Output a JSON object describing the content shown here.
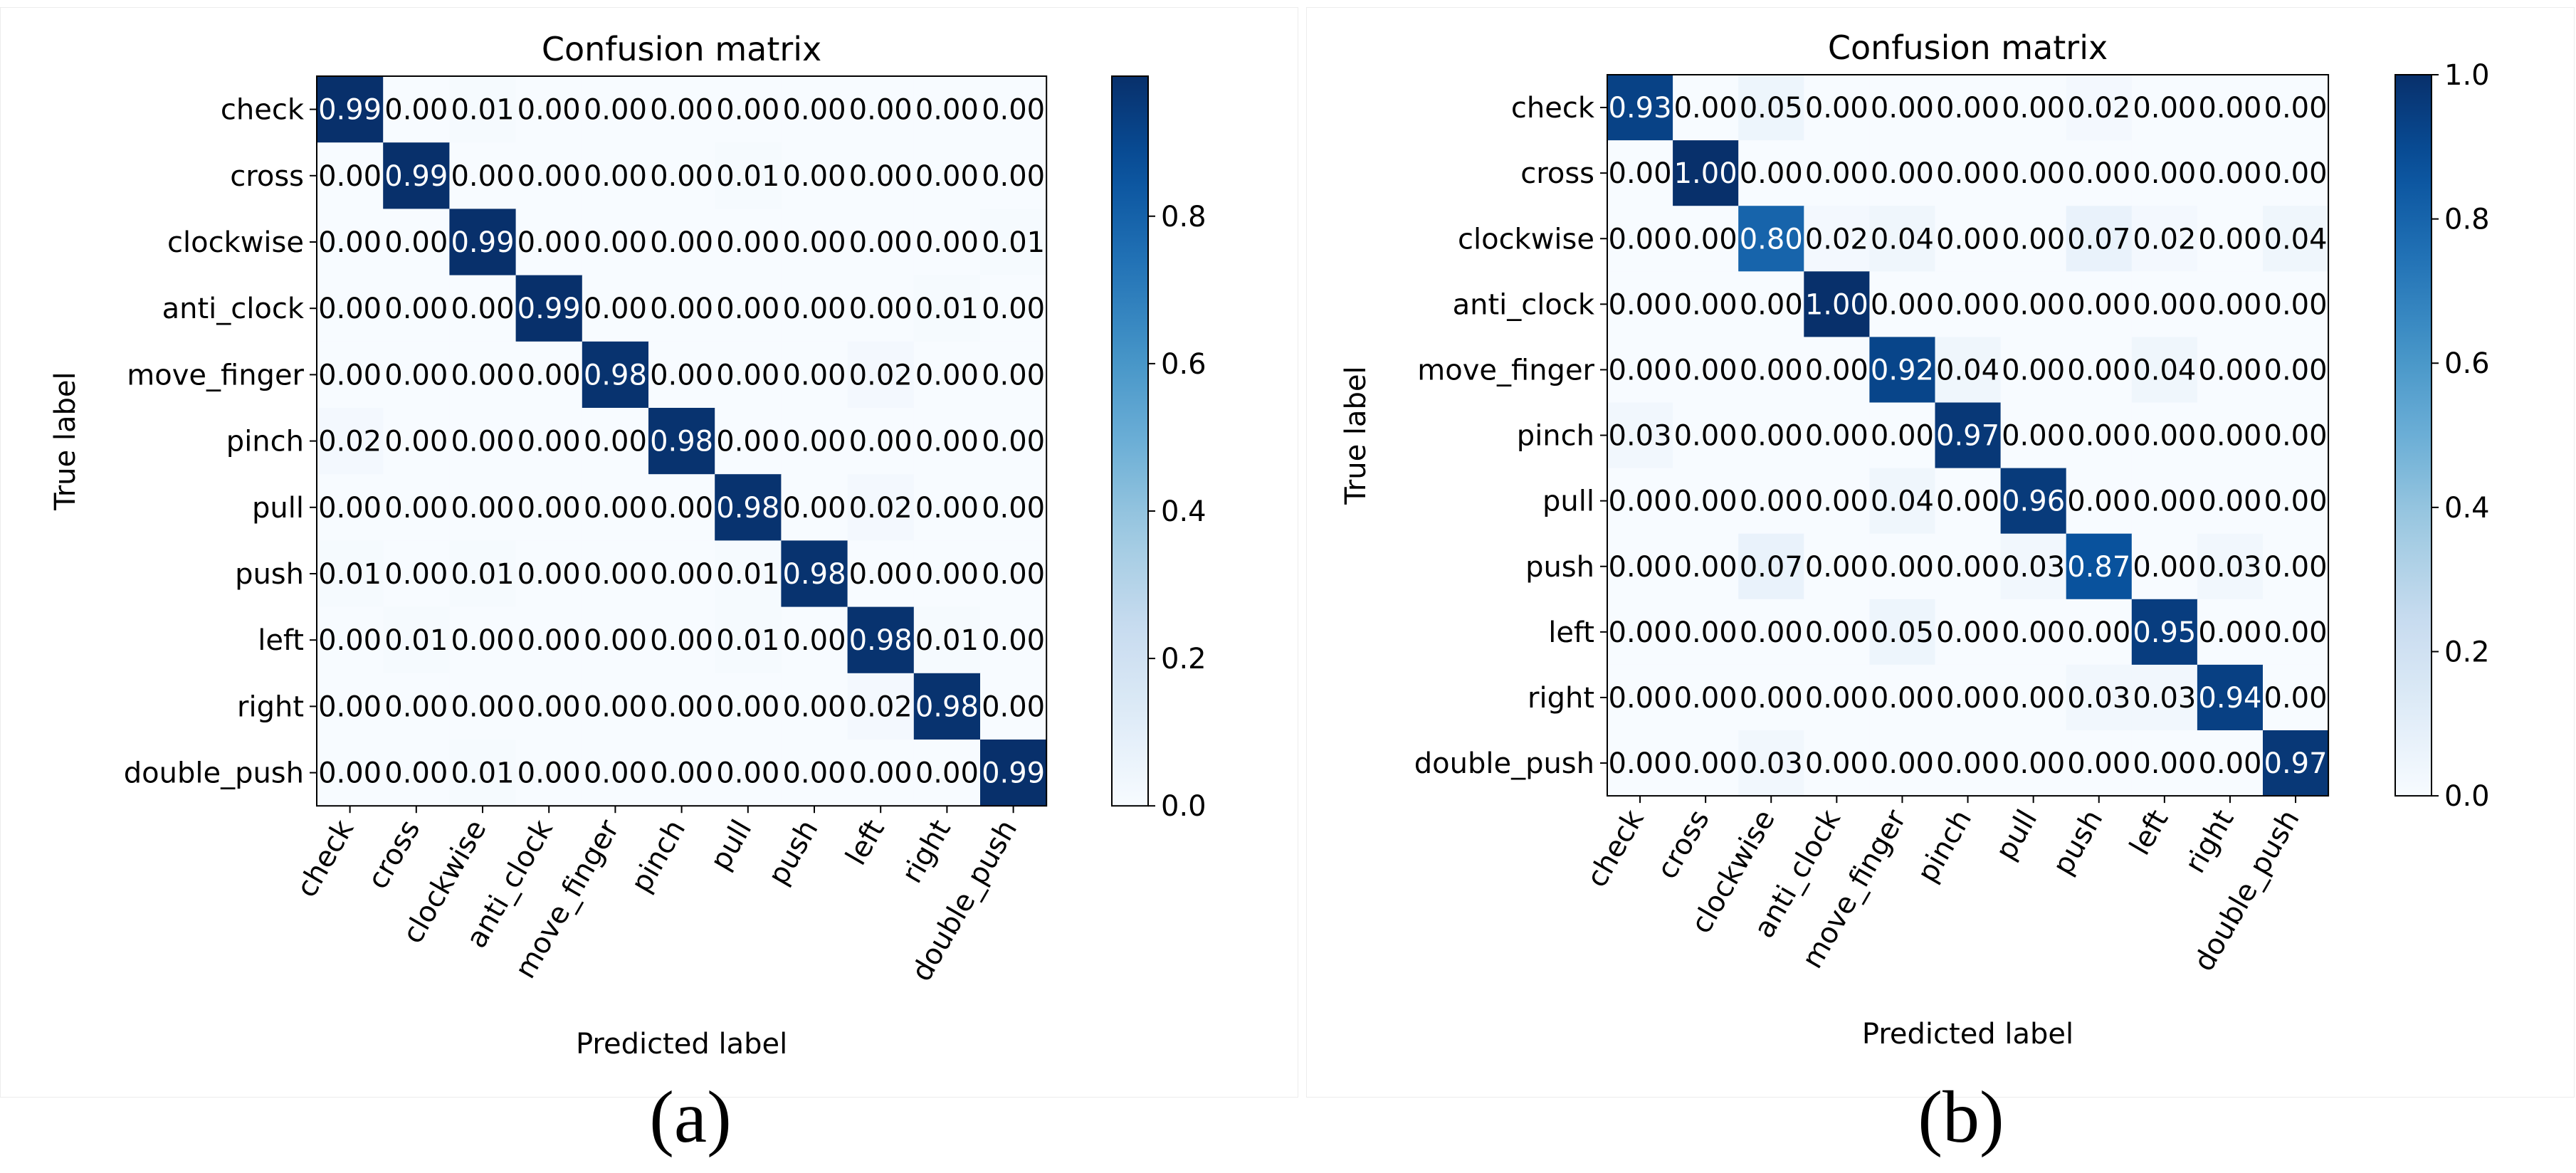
{
  "figure": {
    "caption_a": "(a)",
    "caption_b": "(b)"
  },
  "chart_data": [
    {
      "type": "heatmap",
      "title": "Confusion matrix",
      "xlabel": "Predicted label",
      "ylabel": "True label",
      "labels": [
        "check",
        "cross",
        "clockwise",
        "anti_clock",
        "move_finger",
        "pinch",
        "pull",
        "push",
        "left",
        "right",
        "double_push"
      ],
      "cells": [
        [
          "0.99",
          "0.00",
          "0.01",
          "0.00",
          "0.00",
          "0.00",
          "0.00",
          "0.00",
          "0.00",
          "0.00",
          "0.00"
        ],
        [
          "0.00",
          "0.99",
          "0.00",
          "0.00",
          "0.00",
          "0.00",
          "0.01",
          "0.00",
          "0.00",
          "0.00",
          "0.00"
        ],
        [
          "0.00",
          "0.00",
          "0.99",
          "0.00",
          "0.00",
          "0.00",
          "0.00",
          "0.00",
          "0.00",
          "0.00",
          "0.01"
        ],
        [
          "0.00",
          "0.00",
          "0.00",
          "0.99",
          "0.00",
          "0.00",
          "0.00",
          "0.00",
          "0.00",
          "0.01",
          "0.00"
        ],
        [
          "0.00",
          "0.00",
          "0.00",
          "0.00",
          "0.98",
          "0.00",
          "0.00",
          "0.00",
          "0.02",
          "0.00",
          "0.00"
        ],
        [
          "0.02",
          "0.00",
          "0.00",
          "0.00",
          "0.00",
          "0.98",
          "0.00",
          "0.00",
          "0.00",
          "0.00",
          "0.00"
        ],
        [
          "0.00",
          "0.00",
          "0.00",
          "0.00",
          "0.00",
          "0.00",
          "0.98",
          "0.00",
          "0.02",
          "0.00",
          "0.00"
        ],
        [
          "0.01",
          "0.00",
          "0.01",
          "0.00",
          "0.00",
          "0.00",
          "0.01",
          "0.98",
          "0.00",
          "0.00",
          "0.00"
        ],
        [
          "0.00",
          "0.01",
          "0.00",
          "0.00",
          "0.00",
          "0.00",
          "0.01",
          "0.00",
          "0.98",
          "0.01",
          "0.00"
        ],
        [
          "0.00",
          "0.00",
          "0.00",
          "0.00",
          "0.00",
          "0.00",
          "0.00",
          "0.00",
          "0.02",
          "0.98",
          "0.00"
        ],
        [
          "0.00",
          "0.00",
          "0.01",
          "0.00",
          "0.00",
          "0.00",
          "0.00",
          "0.00",
          "0.00",
          "0.00",
          "0.99"
        ]
      ],
      "colorbar": {
        "min": 0.0,
        "max": 0.99,
        "cmap": "Blues",
        "ticks": [
          "0.0",
          "0.2",
          "0.4",
          "0.6",
          "0.8"
        ]
      }
    },
    {
      "type": "heatmap",
      "title": "Confusion matrix",
      "xlabel": "Predicted label",
      "ylabel": "True label",
      "labels": [
        "check",
        "cross",
        "clockwise",
        "anti_clock",
        "move_finger",
        "pinch",
        "pull",
        "push",
        "left",
        "right",
        "double_push"
      ],
      "cells": [
        [
          "0.93",
          "0.00",
          "0.05",
          "0.00",
          "0.00",
          "0.00",
          "0.00",
          "0.02",
          "0.00",
          "0.00",
          "0.00"
        ],
        [
          "0.00",
          "1.00",
          "0.00",
          "0.00",
          "0.00",
          "0.00",
          "0.00",
          "0.00",
          "0.00",
          "0.00",
          "0.00"
        ],
        [
          "0.00",
          "0.00",
          "0.80",
          "0.02",
          "0.04",
          "0.00",
          "0.00",
          "0.07",
          "0.02",
          "0.00",
          "0.04"
        ],
        [
          "0.00",
          "0.00",
          "0.00",
          "1.00",
          "0.00",
          "0.00",
          "0.00",
          "0.00",
          "0.00",
          "0.00",
          "0.00"
        ],
        [
          "0.00",
          "0.00",
          "0.00",
          "0.00",
          "0.92",
          "0.04",
          "0.00",
          "0.00",
          "0.04",
          "0.00",
          "0.00"
        ],
        [
          "0.03",
          "0.00",
          "0.00",
          "0.00",
          "0.00",
          "0.97",
          "0.00",
          "0.00",
          "0.00",
          "0.00",
          "0.00"
        ],
        [
          "0.00",
          "0.00",
          "0.00",
          "0.00",
          "0.04",
          "0.00",
          "0.96",
          "0.00",
          "0.00",
          "0.00",
          "0.00"
        ],
        [
          "0.00",
          "0.00",
          "0.07",
          "0.00",
          "0.00",
          "0.00",
          "0.03",
          "0.87",
          "0.00",
          "0.03",
          "0.00"
        ],
        [
          "0.00",
          "0.00",
          "0.00",
          "0.00",
          "0.05",
          "0.00",
          "0.00",
          "0.00",
          "0.95",
          "0.00",
          "0.00"
        ],
        [
          "0.00",
          "0.00",
          "0.00",
          "0.00",
          "0.00",
          "0.00",
          "0.00",
          "0.03",
          "0.03",
          "0.94",
          "0.00"
        ],
        [
          "0.00",
          "0.00",
          "0.03",
          "0.00",
          "0.00",
          "0.00",
          "0.00",
          "0.00",
          "0.00",
          "0.00",
          "0.97"
        ]
      ],
      "colorbar": {
        "min": 0.0,
        "max": 1.0,
        "cmap": "Blues",
        "ticks": [
          "0.0",
          "0.2",
          "0.4",
          "0.6",
          "0.8",
          "1.0"
        ]
      }
    }
  ]
}
